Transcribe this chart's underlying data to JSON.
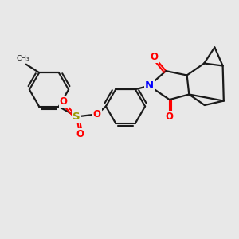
{
  "background_color": "#e8e8e8",
  "atom_colors": {
    "N": "#0000FF",
    "O": "#FF0000",
    "S": "#999900"
  },
  "bond_lw": 1.6,
  "bond_color": "#1a1a1a"
}
